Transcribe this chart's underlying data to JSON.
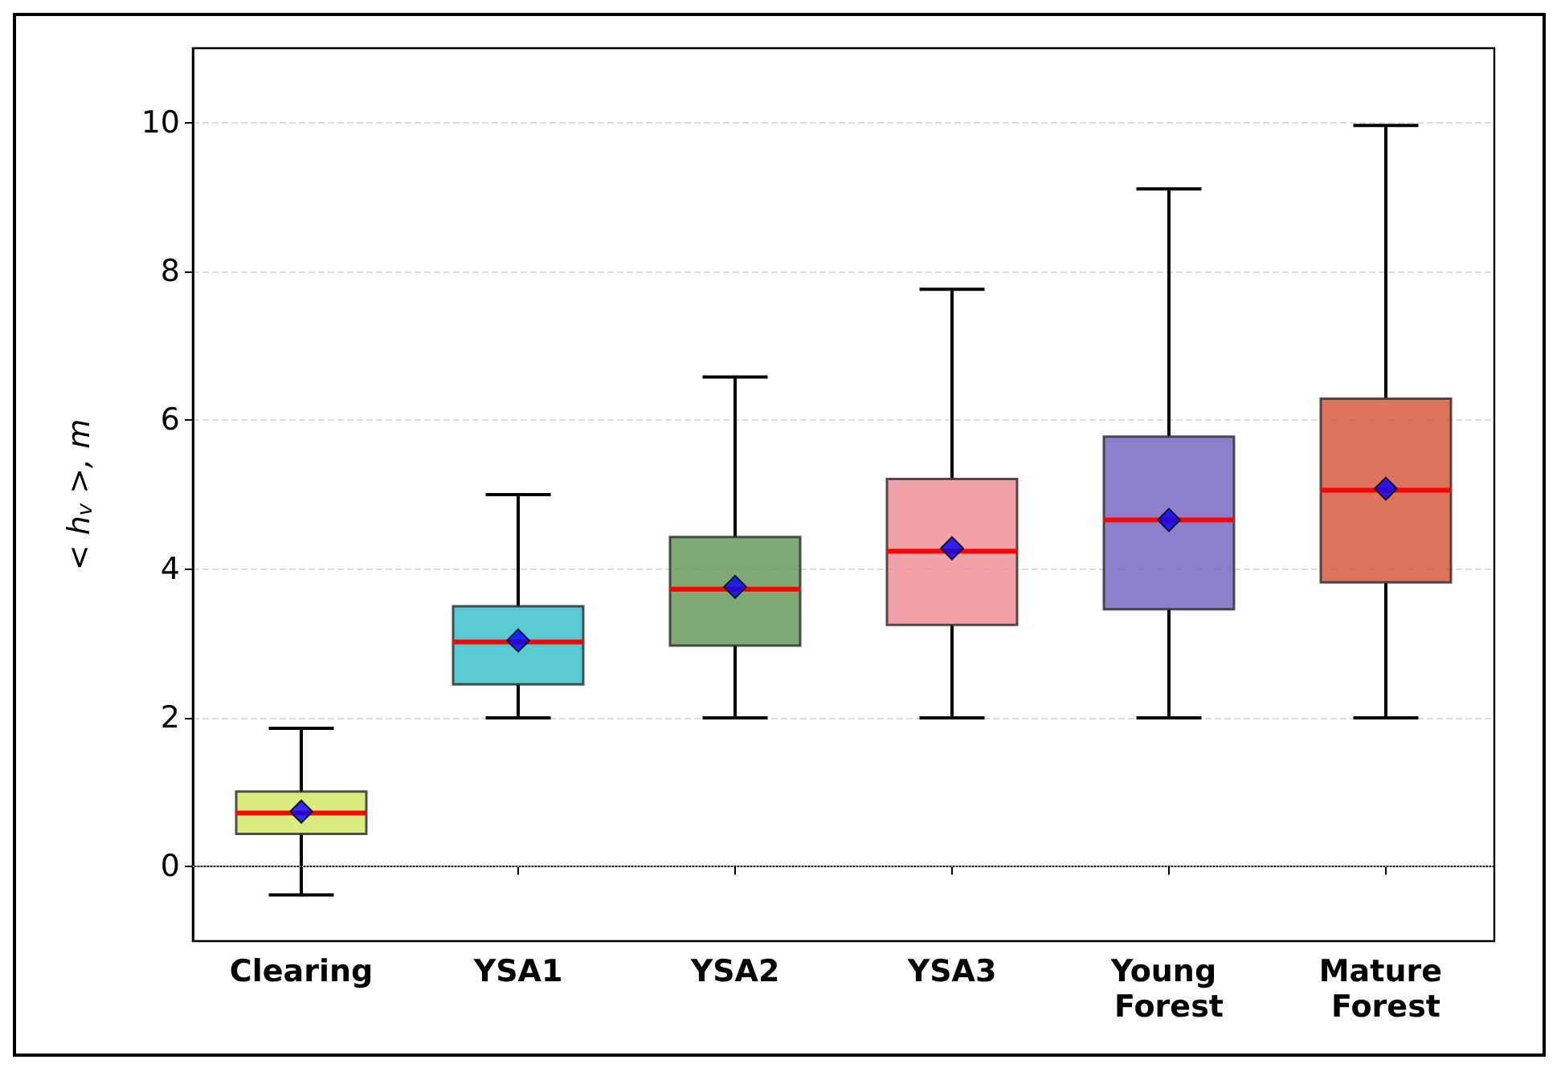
{
  "chart_data": {
    "type": "box",
    "ylabel": "< h$_{v}$ >, m",
    "categories": [
      "Clearing",
      "YSA1",
      "YSA2",
      "YSA3",
      "Young Forest",
      "Mature Forest"
    ],
    "colors": [
      "#d4e86a",
      "#3cc0cc",
      "#6a9a5a",
      "#f0909a",
      "#7a68c4",
      "#d85c40"
    ],
    "boxes": [
      {
        "low": -0.38,
        "q1": 0.44,
        "median": 0.72,
        "q3": 1.01,
        "high": 1.86,
        "mean": 0.74
      },
      {
        "low": 2.0,
        "q1": 2.45,
        "median": 3.02,
        "q3": 3.5,
        "high": 5.0,
        "mean": 3.04
      },
      {
        "low": 2.0,
        "q1": 2.97,
        "median": 3.73,
        "q3": 4.43,
        "high": 6.58,
        "mean": 3.76
      },
      {
        "low": 2.0,
        "q1": 3.25,
        "median": 4.24,
        "q3": 5.21,
        "high": 7.76,
        "mean": 4.28
      },
      {
        "low": 2.0,
        "q1": 3.46,
        "median": 4.66,
        "q3": 5.78,
        "high": 9.11,
        "mean": 4.66
      },
      {
        "low": 2.0,
        "q1": 3.82,
        "median": 5.06,
        "q3": 6.29,
        "high": 9.96,
        "mean": 5.08
      }
    ],
    "ylim": [
      -1,
      11
    ],
    "yticks": [
      0,
      2,
      4,
      6,
      8,
      10
    ],
    "grid": "y",
    "marker": "diamond",
    "ref_lines": [
      {
        "axis": "y",
        "value": 0,
        "color": "#999999",
        "line_style": "dotted"
      }
    ]
  }
}
